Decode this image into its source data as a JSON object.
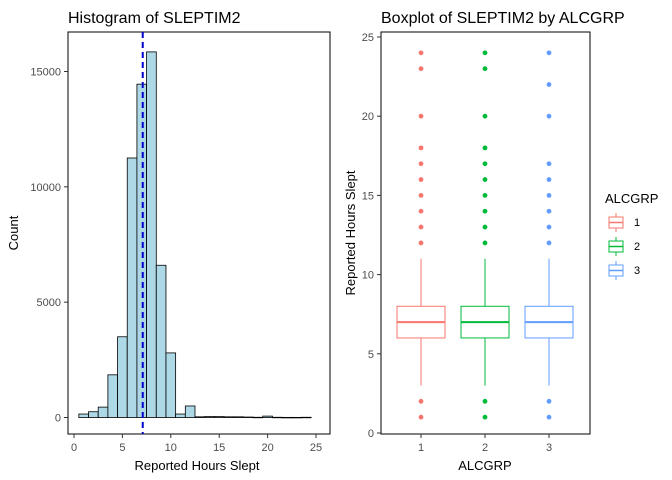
{
  "chart_data": [
    {
      "type": "bar",
      "subtype": "histogram",
      "title": "Histogram of SLEPTIM2",
      "xlabel": "Reported Hours Slept",
      "ylabel": "Count",
      "xlim": [
        0,
        25
      ],
      "ylim": [
        0,
        16000
      ],
      "xticks": [
        "0",
        "5",
        "10",
        "15",
        "20",
        "25"
      ],
      "yticks": [
        "0",
        "5000",
        "10000",
        "15000"
      ],
      "bins": [
        {
          "x0": 0.5,
          "x1": 1.5,
          "count": 150
        },
        {
          "x0": 1.5,
          "x1": 2.5,
          "count": 250
        },
        {
          "x0": 2.5,
          "x1": 3.5,
          "count": 450
        },
        {
          "x0": 3.5,
          "x1": 4.5,
          "count": 1850
        },
        {
          "x0": 4.5,
          "x1": 5.5,
          "count": 3500
        },
        {
          "x0": 5.5,
          "x1": 6.5,
          "count": 11250
        },
        {
          "x0": 6.5,
          "x1": 7.5,
          "count": 14450
        },
        {
          "x0": 7.5,
          "x1": 8.5,
          "count": 15850
        },
        {
          "x0": 8.5,
          "x1": 9.5,
          "count": 6600
        },
        {
          "x0": 9.5,
          "x1": 10.5,
          "count": 2800
        },
        {
          "x0": 10.5,
          "x1": 11.5,
          "count": 150
        },
        {
          "x0": 11.5,
          "x1": 12.5,
          "count": 500
        },
        {
          "x0": 12.5,
          "x1": 13.5,
          "count": 30
        },
        {
          "x0": 13.5,
          "x1": 14.5,
          "count": 40
        },
        {
          "x0": 14.5,
          "x1": 15.5,
          "count": 40
        },
        {
          "x0": 15.5,
          "x1": 16.5,
          "count": 30
        },
        {
          "x0": 16.5,
          "x1": 17.5,
          "count": 30
        },
        {
          "x0": 17.5,
          "x1": 18.5,
          "count": 20
        },
        {
          "x0": 18.5,
          "x1": 19.5,
          "count": 10
        },
        {
          "x0": 19.5,
          "x1": 20.5,
          "count": 60
        },
        {
          "x0": 20.5,
          "x1": 21.5,
          "count": 10
        },
        {
          "x0": 21.5,
          "x1": 22.5,
          "count": 5
        },
        {
          "x0": 22.5,
          "x1": 23.5,
          "count": 5
        },
        {
          "x0": 23.5,
          "x1": 24.5,
          "count": 10
        }
      ],
      "bar_fill": "#add8e6",
      "bar_stroke": "#000000",
      "mean_line": {
        "x": 7.1,
        "color": "#0000cd",
        "style": "dashed"
      },
      "grid": false
    },
    {
      "type": "boxplot",
      "title": "Boxplot of SLEPTIM2 by ALCGRP",
      "xlabel": "ALCGRP",
      "ylabel": "Reported Hours Slept",
      "ylim": [
        0,
        25
      ],
      "yticks": [
        "0",
        "5",
        "10",
        "15",
        "20",
        "25"
      ],
      "categories": [
        "1",
        "2",
        "3"
      ],
      "series": [
        {
          "name": "1",
          "color": "#f8766d",
          "q1": 6,
          "median": 7,
          "q3": 8,
          "whisker_low": 3,
          "whisker_high": 11,
          "outliers": [
            1,
            2,
            12,
            13,
            14,
            15,
            16,
            17,
            18,
            20,
            23,
            24
          ]
        },
        {
          "name": "2",
          "color": "#00ba38",
          "q1": 6,
          "median": 7,
          "q3": 8,
          "whisker_low": 3,
          "whisker_high": 11,
          "outliers": [
            1,
            2,
            12,
            13,
            14,
            15,
            16,
            17,
            18,
            20,
            23,
            24
          ]
        },
        {
          "name": "3",
          "color": "#619cff",
          "q1": 6,
          "median": 7,
          "q3": 8,
          "whisker_low": 3,
          "whisker_high": 11,
          "outliers": [
            1,
            2,
            12,
            13,
            14,
            15,
            16,
            17,
            20,
            22,
            24
          ]
        }
      ],
      "legend": {
        "title": "ALCGRP",
        "placement": "right"
      },
      "grid": false
    }
  ]
}
